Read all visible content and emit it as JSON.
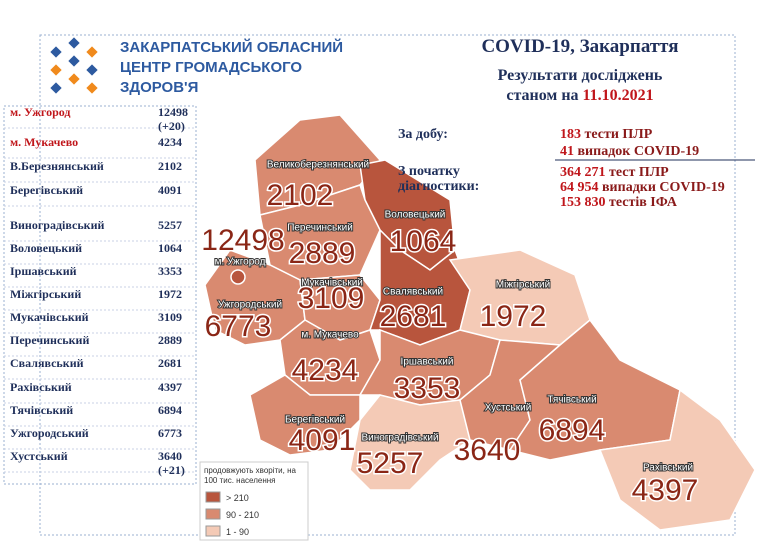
{
  "header": {
    "org": [
      "ЗАКАРПАТСЬКИЙ ОБЛАСНИЙ",
      "ЦЕНТР ГРОМАДСЬКОГО",
      "ЗДОРОВ'Я"
    ],
    "title": "COVID-19, Закарпаття",
    "subtitle": "Результати досліджень",
    "date_prefix": "станом на",
    "date": "11.10.2021"
  },
  "table": {
    "rows": [
      [
        "м. Ужгород",
        "12498",
        "(+20)"
      ],
      [
        "м. Мукачево",
        "4234"
      ],
      [
        "В.Березнянський",
        "2102"
      ],
      [
        "Берегівський",
        "4091"
      ],
      [
        "Виноградівський",
        "5257"
      ],
      [
        "Воловецький",
        "1064"
      ],
      [
        "Іршавський",
        "3353"
      ],
      [
        "Міжгірський",
        "1972"
      ],
      [
        "Мукачівський",
        "3109"
      ],
      [
        "Перечинський",
        "2889"
      ],
      [
        "Свалявський",
        "2681"
      ],
      [
        "Рахівський",
        "4397"
      ],
      [
        "Тячівський",
        "6894"
      ],
      [
        "Ужгородський",
        "6773"
      ],
      [
        "Хустський",
        "3640",
        "(+21)"
      ]
    ]
  },
  "stats": {
    "day_label": "За добу:",
    "day": [
      [
        "183",
        "тести ПЛР"
      ],
      [
        "41",
        "випадок COVID-19"
      ]
    ],
    "total_label": [
      "З початку",
      "діагностики:"
    ],
    "total": [
      [
        "364 271",
        "тест ПЛР"
      ],
      [
        "64 954",
        "випадки COVID-19"
      ],
      [
        "153 830",
        "тестів ІФА"
      ]
    ]
  },
  "map": {
    "regions": [
      {
        "label": "Великоберезнянський",
        "value": "2102",
        "level": 1
      },
      {
        "label": "Воловецький",
        "value": "1064",
        "level": 0
      },
      {
        "label": "Перечинський",
        "value": "2889",
        "level": 1
      },
      {
        "label": "Ужгородський",
        "value": "6773",
        "level": 1
      },
      {
        "label": "Мукачівський",
        "value": "3109",
        "level": 1
      },
      {
        "label": "Свалявський",
        "value": "2681",
        "level": 0
      },
      {
        "label": "Міжгірський",
        "value": "1972",
        "level": 2
      },
      {
        "label": "м. Мукачево",
        "value": "4234",
        "level": 1
      },
      {
        "label": "Іршавський",
        "value": "3353",
        "level": 1
      },
      {
        "label": "Берегівський",
        "value": "4091",
        "level": 1
      },
      {
        "label": "Виноградівський",
        "value": "5257",
        "level": 2
      },
      {
        "label": "Хустський",
        "value": "3640",
        "level": 1
      },
      {
        "label": "Тячівський",
        "value": "6894",
        "level": 1
      },
      {
        "label": "Рахівський",
        "value": "4397",
        "level": 2
      },
      {
        "label": "м. Ужгород",
        "value": "12498",
        "level": 0
      }
    ],
    "legend": {
      "title": [
        "продовжують хворіти, на",
        "100 тис. населення"
      ],
      "items": [
        "> 210",
        "90 - 210",
        "1 - 90"
      ],
      "colors": [
        "#b8553d",
        "#d98a70",
        "#f4cab6"
      ]
    }
  }
}
